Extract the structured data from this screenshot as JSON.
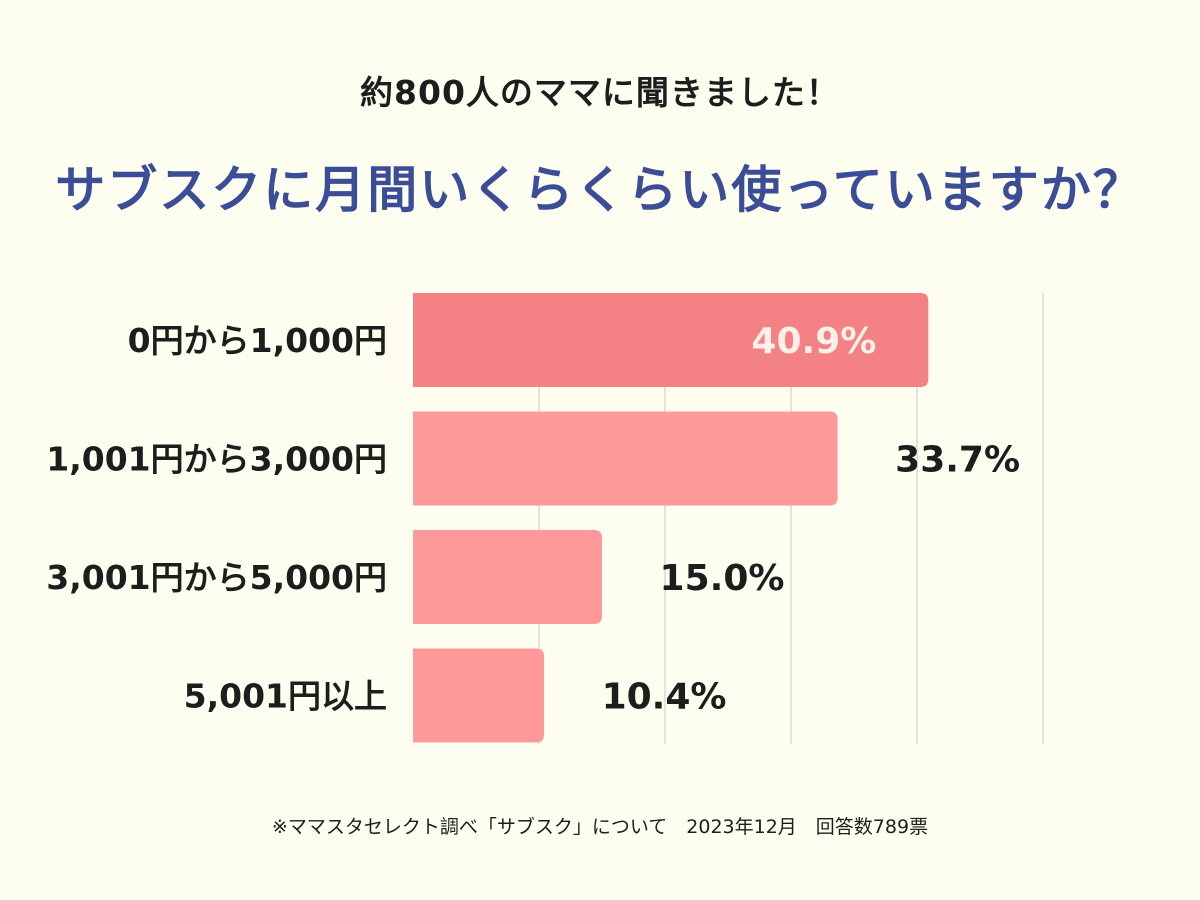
{
  "subtitle": "約800人のママに聞きました！",
  "title": "サブスクに月間いくらくらい使っていますか？",
  "footnote": "※ママスタセレクト調べ「サブスク」について　2023年12月　回答数789票",
  "colors": {
    "background": "#fdfdf0",
    "title": "#3b4d96",
    "bar_highlight": "#f48183",
    "bar_normal": "#fd9999",
    "grid": "#c9c9c0",
    "label_inside": "#fdf0e8",
    "label_outside": "#1d1d1d"
  },
  "chart_data": {
    "type": "bar",
    "orientation": "horizontal",
    "categories": [
      "0円から1,000円",
      "1,001円から3,000円",
      "3,001円から5,000円",
      "5,001円以上"
    ],
    "values": [
      40.9,
      33.7,
      15.0,
      10.4
    ],
    "data_labels": [
      "40.9%",
      "33.7%",
      "15.0%",
      "10.4%"
    ],
    "highlight_index": 0,
    "xlim": [
      0,
      50
    ],
    "grid": true,
    "legend": "none"
  }
}
